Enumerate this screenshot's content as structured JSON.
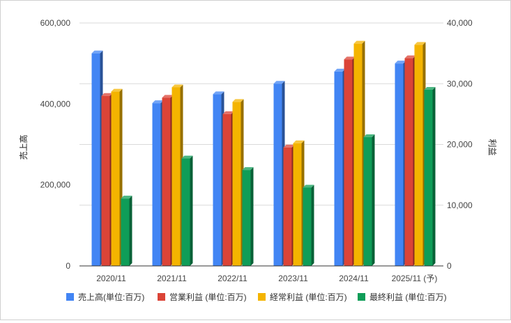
{
  "chart_data": {
    "type": "bar",
    "categories": [
      "2020/11",
      "2021/11",
      "2022/11",
      "2023/11",
      "2024/11",
      "2025/11 (予)"
    ],
    "left_axis": {
      "label": "売上高",
      "range": [
        0,
        600000
      ],
      "ticks": [
        "0",
        "200,000",
        "400,000",
        "600,000"
      ],
      "tick_values": [
        0,
        200000,
        400000,
        600000
      ]
    },
    "right_axis": {
      "label": "利益",
      "range": [
        0,
        40000
      ],
      "ticks": [
        "0",
        "10,000",
        "20,000",
        "30,000",
        "40,000"
      ],
      "tick_values": [
        0,
        10000,
        20000,
        30000,
        40000
      ]
    },
    "series": [
      {
        "name": "売上高(単位:百万)",
        "axis": "left",
        "color": "#4285f4",
        "values": [
          525000,
          402000,
          424000,
          450000,
          480000,
          500000
        ]
      },
      {
        "name": "営業利益 (単位:百万)",
        "axis": "right",
        "color": "#db4437",
        "values": [
          28000,
          27700,
          25000,
          19500,
          34000,
          34200
        ]
      },
      {
        "name": "経常利益 (単位:百万)",
        "axis": "right",
        "color": "#f4b400",
        "values": [
          28700,
          29400,
          27000,
          20200,
          36600,
          36400
        ]
      },
      {
        "name": "最終利益 (単位:百万)",
        "axis": "right",
        "color": "#0f9d58",
        "values": [
          11100,
          17700,
          15800,
          12900,
          21200,
          29000
        ]
      }
    ],
    "grid": true,
    "legend_position": "bottom"
  }
}
